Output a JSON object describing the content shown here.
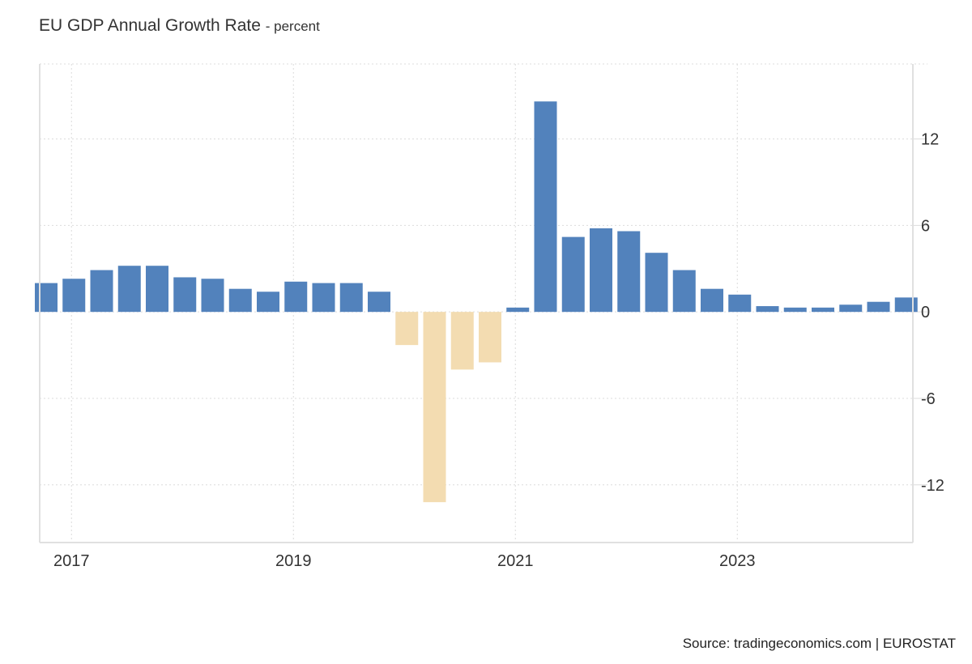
{
  "chart_data": {
    "type": "bar",
    "title": "EU GDP Annual Growth Rate",
    "subtitle": "- percent",
    "xlabel": "",
    "ylabel": "",
    "categories": [
      "2016Q4",
      "2017Q1",
      "2017Q2",
      "2017Q3",
      "2017Q4",
      "2018Q1",
      "2018Q2",
      "2018Q3",
      "2018Q4",
      "2019Q1",
      "2019Q2",
      "2019Q3",
      "2019Q4",
      "2020Q1",
      "2020Q2",
      "2020Q3",
      "2020Q4",
      "2021Q1",
      "2021Q2",
      "2021Q3",
      "2021Q4",
      "2022Q1",
      "2022Q2",
      "2022Q3",
      "2022Q4",
      "2023Q1",
      "2023Q2",
      "2023Q3",
      "2023Q4",
      "2024Q1",
      "2024Q2",
      "2024Q3"
    ],
    "values": [
      2.0,
      2.3,
      2.9,
      3.2,
      3.2,
      2.4,
      2.3,
      1.6,
      1.4,
      2.1,
      2.0,
      2.0,
      1.4,
      -2.3,
      -13.2,
      -4.0,
      -3.5,
      0.3,
      14.6,
      5.2,
      5.8,
      5.6,
      4.1,
      2.9,
      1.6,
      1.2,
      0.4,
      0.3,
      0.3,
      0.5,
      0.7,
      1.0
    ],
    "ylim": [
      -16,
      17.2
    ],
    "yticks": [
      -12,
      -6,
      0,
      6,
      12
    ],
    "ytick_labels": [
      "-12",
      "-6",
      "0",
      "6",
      "12"
    ],
    "xticks": [
      {
        "label": "2017",
        "index": 1
      },
      {
        "label": "2019",
        "index": 9
      },
      {
        "label": "2021",
        "index": 17
      },
      {
        "label": "2023",
        "index": 25
      }
    ],
    "grid": true,
    "y_axis_side": "right",
    "colors": {
      "positive": "#5282bc",
      "negative": "#f3dcb1"
    }
  },
  "source": "Source: tradingeconomics.com | EUROSTAT"
}
